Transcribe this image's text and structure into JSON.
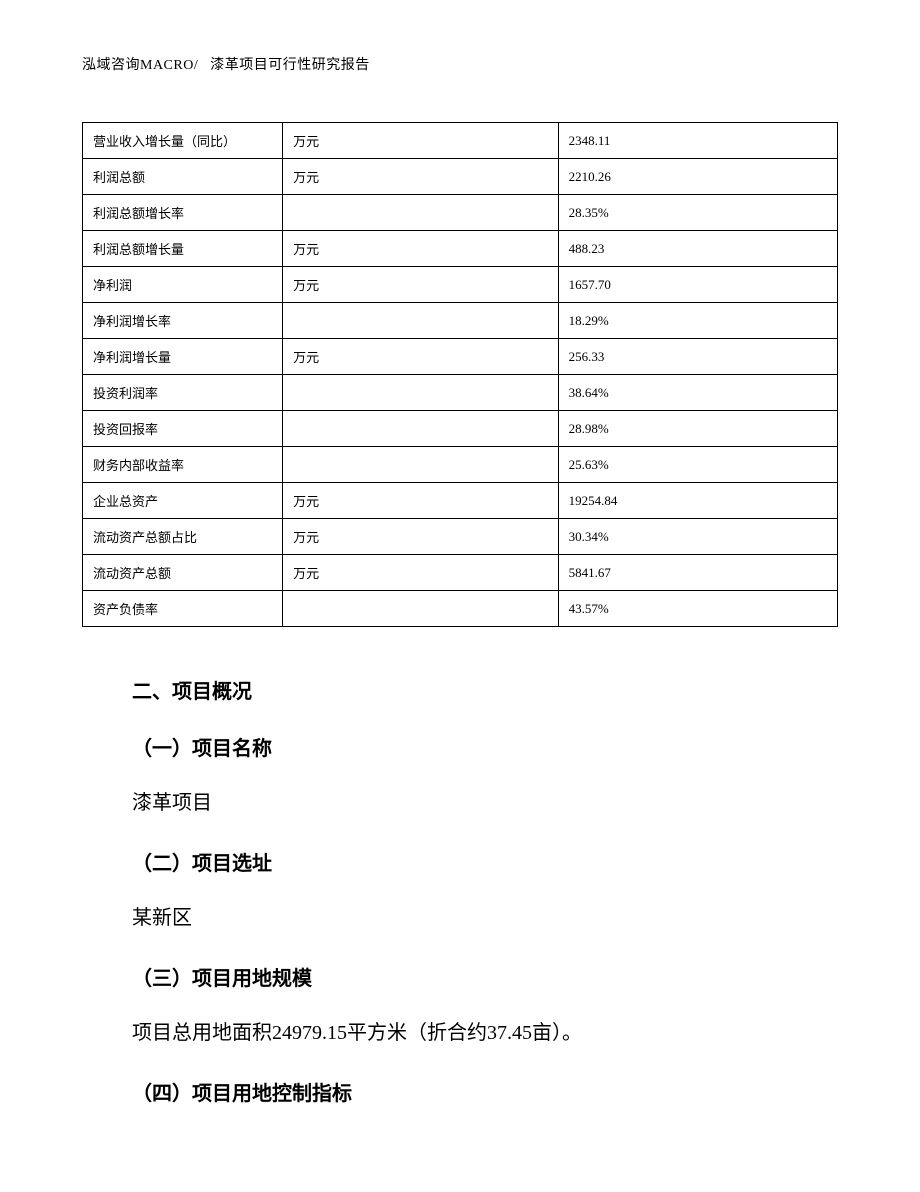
{
  "header": {
    "left": "泓域咨询MACRO/",
    "right": "漆革项目可行性研究报告"
  },
  "table": {
    "rows": [
      {
        "c1": "营业收入增长量（同比）",
        "c2": "万元",
        "c3": "2348.11"
      },
      {
        "c1": "利润总额",
        "c2": "万元",
        "c3": "2210.26"
      },
      {
        "c1": "利润总额增长率",
        "c2": "",
        "c3": "28.35%"
      },
      {
        "c1": "利润总额增长量",
        "c2": "万元",
        "c3": "488.23"
      },
      {
        "c1": "净利润",
        "c2": "万元",
        "c3": "1657.70"
      },
      {
        "c1": "净利润增长率",
        "c2": "",
        "c3": "18.29%"
      },
      {
        "c1": "净利润增长量",
        "c2": "万元",
        "c3": "256.33"
      },
      {
        "c1": "投资利润率",
        "c2": "",
        "c3": "38.64%"
      },
      {
        "c1": "投资回报率",
        "c2": "",
        "c3": "28.98%"
      },
      {
        "c1": "财务内部收益率",
        "c2": "",
        "c3": "25.63%"
      },
      {
        "c1": "企业总资产",
        "c2": "万元",
        "c3": "19254.84"
      },
      {
        "c1": "流动资产总额占比",
        "c2": "万元",
        "c3": "30.34%"
      },
      {
        "c1": "流动资产总额",
        "c2": "万元",
        "c3": "5841.67"
      },
      {
        "c1": "资产负债率",
        "c2": "",
        "c3": "43.57%"
      }
    ]
  },
  "sections": {
    "main_heading": "二、项目概况",
    "s1_heading": "（一）项目名称",
    "s1_body": "漆革项目",
    "s2_heading": "（二）项目选址",
    "s2_body": "某新区",
    "s3_heading": "（三）项目用地规模",
    "s3_body": "项目总用地面积24979.15平方米（折合约37.45亩）。",
    "s4_heading": "（四）项目用地控制指标"
  }
}
